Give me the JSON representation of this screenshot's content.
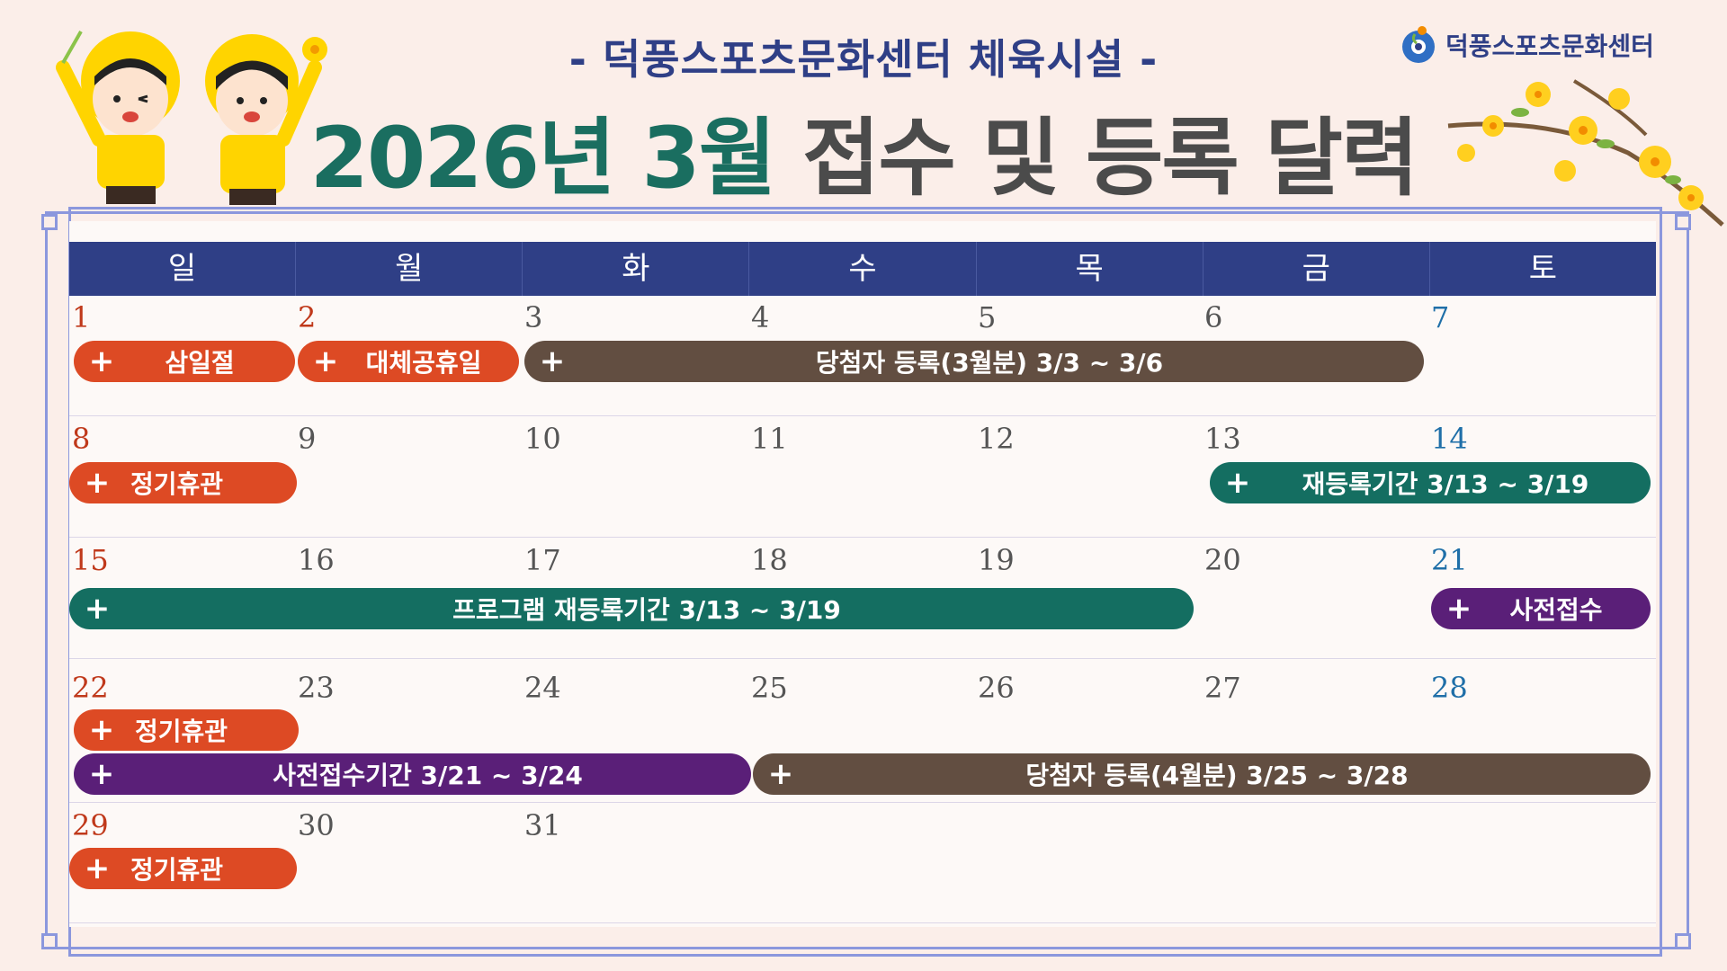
{
  "header": {
    "subtitle": "- 덕풍스포츠문화센터 체육시설 -",
    "title_highlight": "2026년 3월",
    "title_rest": " 접수 및 등록 달력"
  },
  "logo": {
    "text": "덕풍스포츠문화센터"
  },
  "weekdays": [
    "일",
    "월",
    "화",
    "수",
    "목",
    "금",
    "토"
  ],
  "dates": {
    "w1": [
      "1",
      "2",
      "3",
      "4",
      "5",
      "6",
      "7"
    ],
    "w2": [
      "8",
      "9",
      "10",
      "11",
      "12",
      "13",
      "14"
    ],
    "w3": [
      "15",
      "16",
      "17",
      "18",
      "19",
      "20",
      "21"
    ],
    "w4": [
      "22",
      "23",
      "24",
      "25",
      "26",
      "27",
      "28"
    ],
    "w5": [
      "29",
      "30",
      "31"
    ]
  },
  "events": {
    "samiljeol": "삼일절",
    "substitute_holiday": "대체공휴일",
    "winner_reg_march": "당첨자 등록(3월분) 3/3 ~ 3/6",
    "closed_1": "정기휴관",
    "re_registration": "재등록기간 3/13 ~ 3/19",
    "program_re_registration": "프로그램 재등록기간 3/13 ~ 3/19",
    "pre_reception": "사전접수",
    "closed_2": "정기휴관",
    "pre_reception_period": "사전접수기간 3/21 ~ 3/24",
    "winner_reg_april": "당첨자 등록(4월분) 3/25 ~ 3/28",
    "closed_3": "정기휴관"
  },
  "colors": {
    "navy": "#2f3f86",
    "teal": "#146e61",
    "orange": "#dd4a24",
    "brown": "#624e41",
    "purple": "#5a1f78",
    "sunday": "#c0391b",
    "saturday": "#1f6fa8"
  },
  "icons": [
    "plus-icon",
    "forsythia-flower-icon",
    "child-mascot-icon",
    "logo-icon"
  ]
}
